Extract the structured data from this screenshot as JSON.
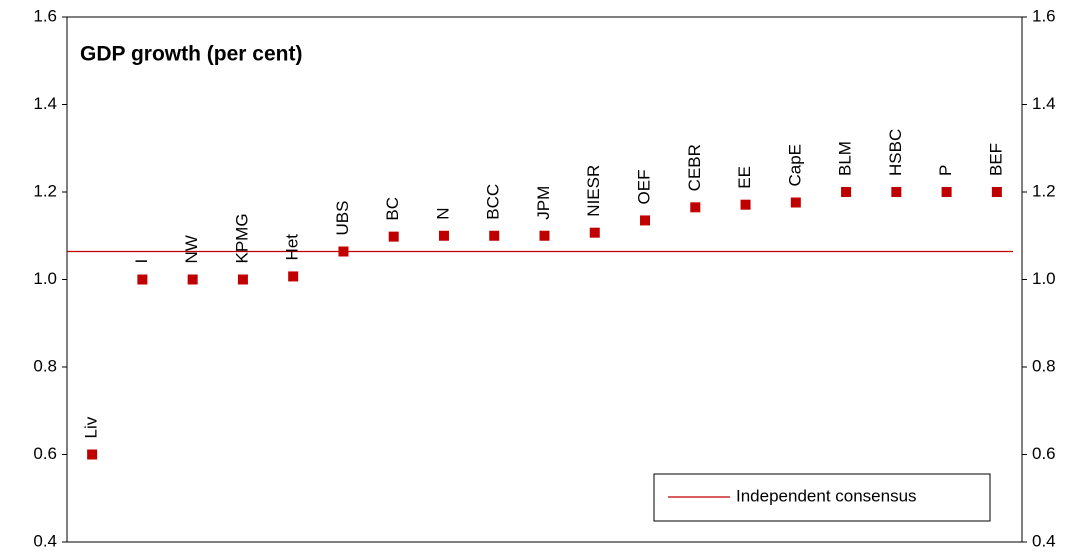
{
  "chart_data": {
    "type": "scatter",
    "title": "GDP growth (per cent)",
    "categories": [
      "Liv",
      "I",
      "NW",
      "KPMG",
      "Het",
      "UBS",
      "BC",
      "N",
      "BCC",
      "JPM",
      "NIESR",
      "OEF",
      "CEBR",
      "EE",
      "CapE",
      "BLM",
      "HSBC",
      "P",
      "BEF"
    ],
    "values": [
      0.6,
      1.0,
      1.0,
      1.0,
      1.007,
      1.064,
      1.098,
      1.1,
      1.1,
      1.1,
      1.107,
      1.135,
      1.165,
      1.171,
      1.176,
      1.2,
      1.2,
      1.2,
      1.2
    ],
    "color": "#c00000",
    "reference_line": {
      "name": "Independent consensus",
      "value": 1.064,
      "color": "#c00000"
    },
    "ylim": [
      0.4,
      1.6
    ],
    "yticks": [
      0.4,
      0.6,
      0.8,
      {
        "value": 1.0,
        "label": "1.0"
      },
      1.2,
      1.4,
      1.6
    ],
    "y2lim": [
      0.4,
      1.6
    ],
    "y2ticks": [
      0.4,
      0.6,
      0.8,
      {
        "value": 1.0,
        "label": "1.0"
      },
      1.2,
      1.4,
      1.6
    ],
    "legend": "lower right"
  }
}
